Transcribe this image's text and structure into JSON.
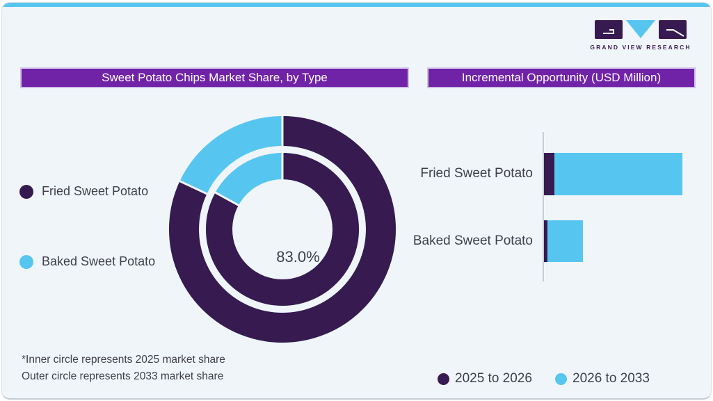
{
  "page": {
    "background": "#ffffff",
    "card_background": "#f0f5f9",
    "top_bar_color": "#56c6f0",
    "banner_color": "#7123a8",
    "text_color": "#3f3f49"
  },
  "logo": {
    "brand": "GRAND VIEW RESEARCH",
    "block_color": "#371a4f",
    "triangle_color": "#56c6f0"
  },
  "left_panel": {
    "title": "Sweet Potato Chips Market Share, by Type",
    "legend": [
      {
        "label": "Fried Sweet Potato",
        "color": "#371a4f"
      },
      {
        "label": "Baked Sweet Potato",
        "color": "#56c6f0"
      }
    ],
    "center_label": "83.0%",
    "footnote": [
      "*Inner circle represents 2025 market share",
      "Outer circle represents 2033 market share"
    ]
  },
  "right_panel": {
    "title": "Incremental Opportunity (USD Million)",
    "legend": [
      {
        "label": "2025 to 2026",
        "color": "#371a4f"
      },
      {
        "label": "2026 to 2033",
        "color": "#56c6f0"
      }
    ]
  },
  "chart_data": [
    {
      "type": "pie",
      "variant": "double-donut",
      "title": "Sweet Potato Chips Market Share, by Type",
      "center_label": "83.0%",
      "start_angle_deg": 0,
      "direction": "clockwise",
      "rings": [
        {
          "name": "Inner circle - 2025 market share",
          "segments": [
            {
              "label": "Fried Sweet Potato",
              "value": 83.0,
              "color": "#371a4f"
            },
            {
              "label": "Baked Sweet Potato",
              "value": 17.0,
              "color": "#56c6f0"
            }
          ]
        },
        {
          "name": "Outer circle - 2033 market share",
          "segments": [
            {
              "label": "Fried Sweet Potato",
              "value": 82.0,
              "color": "#371a4f"
            },
            {
              "label": "Baked Sweet Potato",
              "value": 18.0,
              "color": "#56c6f0"
            }
          ]
        }
      ],
      "note": "Outer-ring split is not labeled on the chart; estimated from arc angles"
    },
    {
      "type": "bar",
      "orientation": "horizontal",
      "stacked": true,
      "title": "Incremental Opportunity (USD Million)",
      "categories": [
        "Fried Sweet Potato",
        "Baked Sweet Potato"
      ],
      "series": [
        {
          "name": "2025 to 2026",
          "color": "#371a4f",
          "values": [
            14.5,
            4.5
          ]
        },
        {
          "name": "2026 to 2033",
          "color": "#56c6f0",
          "values": [
            184.5,
            51.5
          ]
        }
      ],
      "value_axis": "unlabeled - values are relative lengths (no numeric scale shown)",
      "legend_position": "bottom"
    }
  ]
}
